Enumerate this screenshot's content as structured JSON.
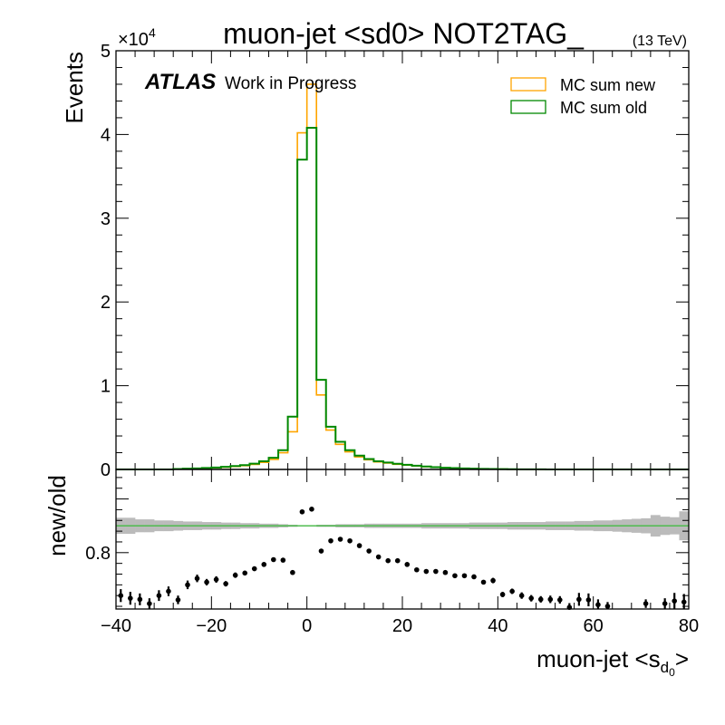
{
  "title": "muon-jet <sd0> NOT2TAG_",
  "energy_label": "(13 TeV)",
  "atlas_label": "ATLAS",
  "atlas_sublabel": "Work in Progress",
  "exponent_label": "×10",
  "exponent_power": "4",
  "colors": {
    "mc_new": "#ffa500",
    "mc_old": "#008800",
    "band": "#bbbbbb",
    "ref_line": "#44bb44",
    "points": "#000000"
  },
  "chart_data": [
    {
      "type": "line",
      "panel": "main",
      "ylabel": "Events",
      "xlim": [
        -40,
        80
      ],
      "ylim": [
        0,
        50000
      ],
      "ytick_labels": [
        "0",
        "1",
        "2",
        "3",
        "4",
        "5"
      ],
      "legend_position": "top-right",
      "bin_edges": [
        -40,
        -38,
        -36,
        -34,
        -32,
        -30,
        -28,
        -26,
        -24,
        -22,
        -20,
        -18,
        -16,
        -14,
        -12,
        -10,
        -8,
        -6,
        -4,
        -2,
        0,
        2,
        4,
        6,
        8,
        10,
        12,
        14,
        16,
        18,
        20,
        22,
        24,
        26,
        28,
        30,
        32,
        34,
        36,
        38,
        40,
        42,
        44,
        46,
        48,
        50,
        52,
        54,
        56,
        58,
        60,
        62,
        64,
        66,
        68,
        70,
        72,
        74,
        76,
        78,
        80
      ],
      "series": [
        {
          "name": "MC sum new",
          "style": "step",
          "values": [
            0,
            0,
            0,
            0,
            0,
            0,
            50,
            80,
            110,
            150,
            200,
            270,
            360,
            450,
            600,
            850,
            1200,
            2000,
            4500,
            40200,
            46000,
            8900,
            4700,
            3000,
            2100,
            1500,
            1150,
            900,
            760,
            620,
            520,
            420,
            330,
            250,
            190,
            150,
            110,
            85,
            60,
            45,
            32,
            24,
            17,
            12,
            8,
            5,
            3,
            2,
            1,
            1,
            0,
            0,
            0,
            0,
            0,
            0,
            0,
            0,
            0,
            0
          ]
        },
        {
          "name": "MC sum old",
          "style": "step",
          "values": [
            0,
            0,
            0,
            0,
            0,
            0,
            60,
            90,
            120,
            170,
            230,
            310,
            410,
            510,
            690,
            980,
            1400,
            2300,
            6300,
            37000,
            40800,
            10700,
            5100,
            3300,
            2300,
            1650,
            1250,
            980,
            820,
            670,
            560,
            450,
            350,
            270,
            205,
            160,
            120,
            90,
            65,
            48,
            35,
            26,
            18,
            13,
            9,
            6,
            4,
            2,
            1,
            1,
            0,
            0,
            0,
            0,
            0,
            0,
            0,
            0,
            0,
            0
          ]
        }
      ]
    },
    {
      "type": "scatter",
      "panel": "ratio",
      "xlabel": "muon-jet <s",
      "xlabel_sub": "d",
      "xlabel_subsub": "0",
      "xlabel_close": ">",
      "ylabel": "new/old",
      "xlim": [
        -40,
        80
      ],
      "ylim": [
        0.695,
        0.955
      ],
      "ytick_labels": [
        "0.8"
      ],
      "xtick_labels": [
        "−40",
        "−20",
        "0",
        "20",
        "40",
        "60",
        "80"
      ],
      "reference_line": 0.85,
      "band_center": 0.85,
      "band_halfwidth": [
        0.015,
        0.015,
        0.012,
        0.012,
        0.01,
        0.01,
        0.009,
        0.008,
        0.008,
        0.007,
        0.007,
        0.006,
        0.006,
        0.005,
        0.005,
        0.004,
        0.004,
        0.003,
        0.002,
        0.001,
        0.001,
        0.002,
        0.002,
        0.003,
        0.003,
        0.003,
        0.004,
        0.004,
        0.004,
        0.004,
        0.004,
        0.004,
        0.005,
        0.005,
        0.005,
        0.005,
        0.005,
        0.006,
        0.006,
        0.006,
        0.006,
        0.007,
        0.007,
        0.007,
        0.007,
        0.008,
        0.008,
        0.008,
        0.009,
        0.009,
        0.01,
        0.01,
        0.011,
        0.012,
        0.013,
        0.014,
        0.02,
        0.017,
        0.016,
        0.027
      ],
      "points": [
        {
          "x": -39,
          "y": 0.72,
          "err": 0.012
        },
        {
          "x": -37,
          "y": 0.715,
          "err": 0.012
        },
        {
          "x": -35,
          "y": 0.713,
          "err": 0.011
        },
        {
          "x": -33,
          "y": 0.705,
          "err": 0.01
        },
        {
          "x": -31,
          "y": 0.72,
          "err": 0.01
        },
        {
          "x": -29,
          "y": 0.728,
          "err": 0.009
        },
        {
          "x": -27,
          "y": 0.712,
          "err": 0.008
        },
        {
          "x": -25,
          "y": 0.74,
          "err": 0.008
        },
        {
          "x": -23,
          "y": 0.752,
          "err": 0.007
        },
        {
          "x": -21,
          "y": 0.745,
          "err": 0.006
        },
        {
          "x": -19,
          "y": 0.75,
          "err": 0.006
        },
        {
          "x": -17,
          "y": 0.742,
          "err": 0.005
        },
        {
          "x": -15,
          "y": 0.758,
          "err": 0.005
        },
        {
          "x": -13,
          "y": 0.762,
          "err": 0.004
        },
        {
          "x": -11,
          "y": 0.77,
          "err": 0.004
        },
        {
          "x": -9,
          "y": 0.778,
          "err": 0.003
        },
        {
          "x": -7,
          "y": 0.787,
          "err": 0.003
        },
        {
          "x": -5,
          "y": 0.786,
          "err": 0.002
        },
        {
          "x": -3,
          "y": 0.763,
          "err": 0.002
        },
        {
          "x": -1,
          "y": 0.876,
          "err": 0.001
        },
        {
          "x": 1,
          "y": 0.881,
          "err": 0.001
        },
        {
          "x": 3,
          "y": 0.803,
          "err": 0.002
        },
        {
          "x": 5,
          "y": 0.822,
          "err": 0.002
        },
        {
          "x": 7,
          "y": 0.825,
          "err": 0.002
        },
        {
          "x": 9,
          "y": 0.822,
          "err": 0.002
        },
        {
          "x": 11,
          "y": 0.813,
          "err": 0.002
        },
        {
          "x": 13,
          "y": 0.803,
          "err": 0.002
        },
        {
          "x": 15,
          "y": 0.792,
          "err": 0.002
        },
        {
          "x": 17,
          "y": 0.785,
          "err": 0.002
        },
        {
          "x": 19,
          "y": 0.785,
          "err": 0.002
        },
        {
          "x": 21,
          "y": 0.778,
          "err": 0.002
        },
        {
          "x": 23,
          "y": 0.768,
          "err": 0.002
        },
        {
          "x": 25,
          "y": 0.765,
          "err": 0.003
        },
        {
          "x": 27,
          "y": 0.765,
          "err": 0.003
        },
        {
          "x": 29,
          "y": 0.763,
          "err": 0.003
        },
        {
          "x": 31,
          "y": 0.757,
          "err": 0.003
        },
        {
          "x": 33,
          "y": 0.757,
          "err": 0.003
        },
        {
          "x": 35,
          "y": 0.755,
          "err": 0.004
        },
        {
          "x": 37,
          "y": 0.745,
          "err": 0.004
        },
        {
          "x": 39,
          "y": 0.748,
          "err": 0.005
        },
        {
          "x": 41,
          "y": 0.722,
          "err": 0.005
        },
        {
          "x": 43,
          "y": 0.728,
          "err": 0.005
        },
        {
          "x": 45,
          "y": 0.72,
          "err": 0.006
        },
        {
          "x": 47,
          "y": 0.715,
          "err": 0.006
        },
        {
          "x": 49,
          "y": 0.713,
          "err": 0.006
        },
        {
          "x": 51,
          "y": 0.713,
          "err": 0.007
        },
        {
          "x": 53,
          "y": 0.712,
          "err": 0.007
        },
        {
          "x": 55,
          "y": 0.698,
          "err": 0.008
        },
        {
          "x": 57,
          "y": 0.713,
          "err": 0.012
        },
        {
          "x": 59,
          "y": 0.712,
          "err": 0.012
        },
        {
          "x": 61,
          "y": 0.703,
          "err": 0.01
        },
        {
          "x": 63,
          "y": 0.7,
          "err": 0.008
        },
        {
          "x": 71,
          "y": 0.705,
          "err": 0.008
        },
        {
          "x": 75,
          "y": 0.705,
          "err": 0.01
        },
        {
          "x": 77,
          "y": 0.71,
          "err": 0.015
        },
        {
          "x": 79,
          "y": 0.708,
          "err": 0.015
        }
      ]
    }
  ]
}
